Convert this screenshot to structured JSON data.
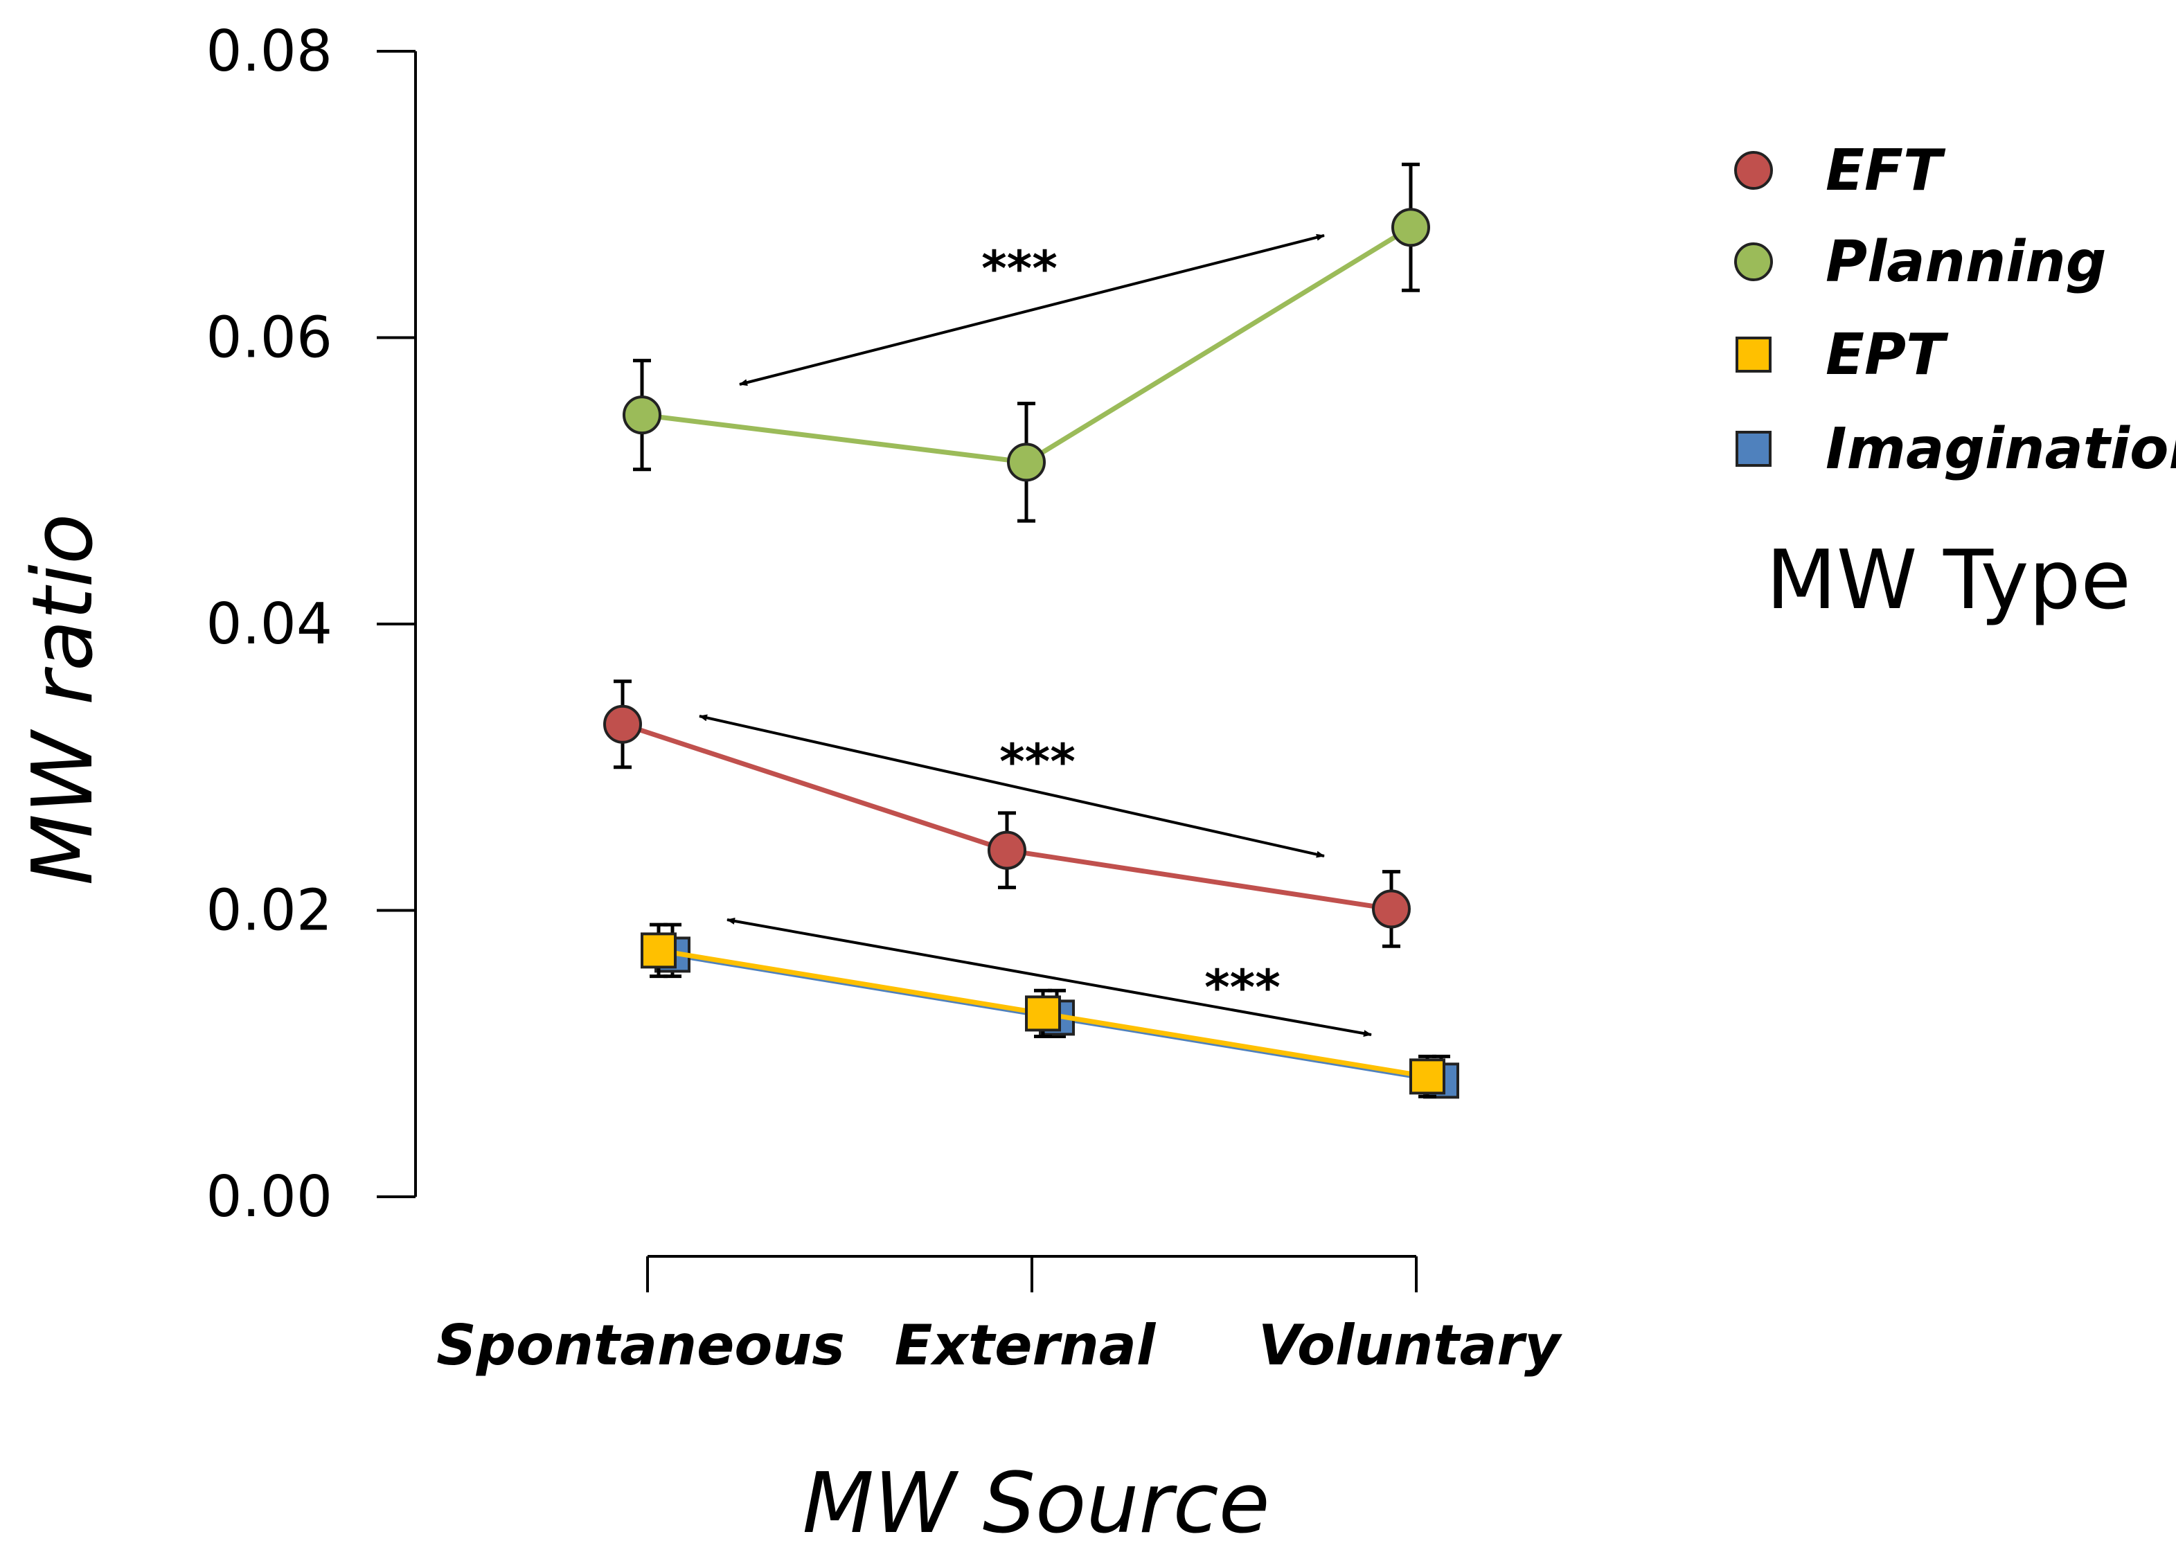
{
  "chart_data": {
    "type": "line",
    "title": "",
    "xlabel": "MW Source",
    "ylabel": "MW ratio",
    "categories": [
      "Spontaneous",
      "External",
      "Voluntary"
    ],
    "ylim": [
      0,
      0.08
    ],
    "yticks": [
      "0.00",
      "0.02",
      "0.04",
      "0.06",
      "0.08"
    ],
    "ytick_values": [
      0,
      0.02,
      0.04,
      0.06,
      0.08
    ],
    "legend_title": "MW Type",
    "series": [
      {
        "name": "EFT",
        "marker": "circle",
        "color": "#c0504d",
        "values": [
          0.033,
          0.0242,
          0.0201
        ],
        "errors": [
          0.003,
          0.0026,
          0.0026
        ]
      },
      {
        "name": "Planning",
        "marker": "circle",
        "color": "#9bbb59",
        "values": [
          0.0546,
          0.0513,
          0.0677
        ],
        "errors": [
          0.0038,
          0.0041,
          0.0044
        ]
      },
      {
        "name": "EPT",
        "marker": "square",
        "color": "#ffc000",
        "values": [
          0.0172,
          0.0128,
          0.0084
        ],
        "errors": [
          0.0018,
          0.0016,
          0.0014
        ]
      },
      {
        "name": "Imagination",
        "marker": "square",
        "color": "#4f81bd",
        "values": [
          0.0172,
          0.0128,
          0.0084
        ],
        "errors": [
          0.0018,
          0.0016,
          0.0014
        ]
      }
    ],
    "annotations": [
      "***",
      "***",
      "***"
    ]
  }
}
